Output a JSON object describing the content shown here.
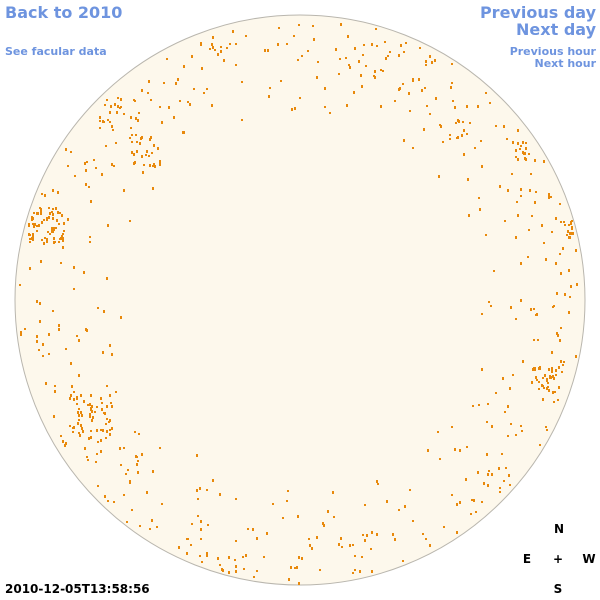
{
  "links": {
    "back": "Back to 2010",
    "facular": "See facular data",
    "prev_day": "Previous day",
    "next_day": "Next day",
    "prev_hour": "Previous hour",
    "next_hour": "Next hour"
  },
  "timestamp": "2010-12-05T13:58:56",
  "compass": {
    "n": "N",
    "e": "E",
    "center": "+",
    "w": "W",
    "s": "S"
  }
}
